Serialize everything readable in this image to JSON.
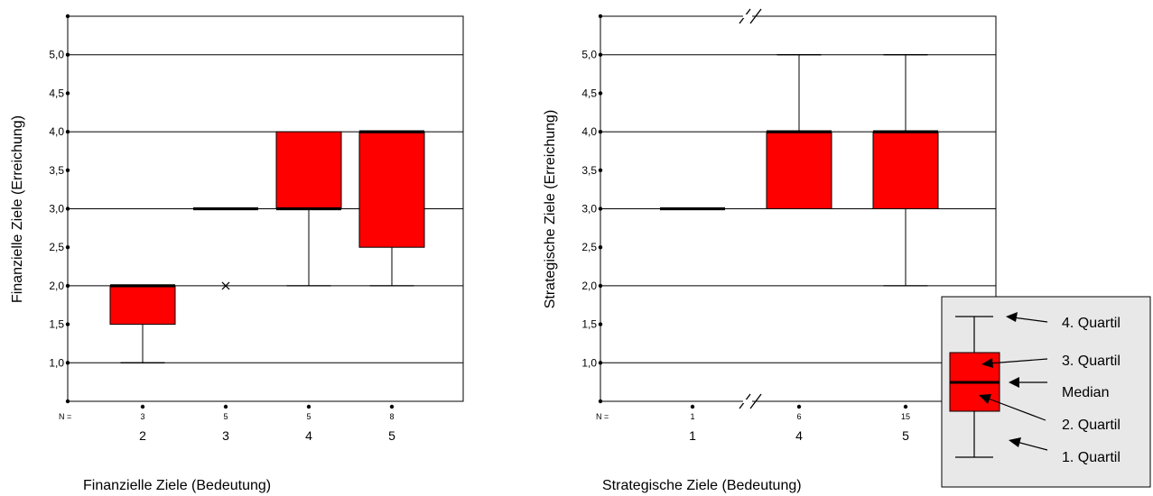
{
  "colors": {
    "box_fill": "#ff0000",
    "legend_bg": "#e8e8e8",
    "line": "#000000"
  },
  "chart_data": [
    {
      "type": "boxplot",
      "xlabel": "Finanzielle Ziele (Bedeutung)",
      "ylabel": "Finanzielle Ziele (Erreichung)",
      "ylim": [
        0.5,
        5.5
      ],
      "yticks": [
        "1,0",
        "1,5",
        "2,0",
        "2,5",
        "3,0",
        "3,5",
        "4,0",
        "4,5",
        "5,0"
      ],
      "ytick_values": [
        1.0,
        1.5,
        2.0,
        2.5,
        3.0,
        3.5,
        4.0,
        4.5,
        5.0
      ],
      "gridlines": [
        1.0,
        2.0,
        3.0,
        4.0,
        5.0
      ],
      "n_label": "N =",
      "axis_break": false,
      "categories": [
        "2",
        "3",
        "4",
        "5"
      ],
      "n": [
        "3",
        "5",
        "5",
        "8"
      ],
      "boxes": [
        {
          "min": 1.0,
          "q1": 1.5,
          "median": 2.0,
          "q3": 2.0,
          "max": 2.0
        },
        {
          "min": 3.0,
          "q1": 3.0,
          "median": 3.0,
          "q3": 3.0,
          "max": 3.0,
          "outliers": [
            2.0
          ]
        },
        {
          "min": 2.0,
          "q1": 3.0,
          "median": 3.0,
          "q3": 4.0,
          "max": 4.0
        },
        {
          "min": 2.0,
          "q1": 2.5,
          "median": 4.0,
          "q3": 4.0,
          "max": 4.0
        }
      ]
    },
    {
      "type": "boxplot",
      "xlabel": "Strategische Ziele (Bedeutung)",
      "ylabel": "Strategische Ziele (Erreichung)",
      "ylim": [
        0.5,
        5.5
      ],
      "yticks": [
        "1,0",
        "1,5",
        "2,0",
        "2,5",
        "3,0",
        "3,5",
        "4,0",
        "4,5",
        "5,0"
      ],
      "ytick_values": [
        1.0,
        1.5,
        2.0,
        2.5,
        3.0,
        3.5,
        4.0,
        4.5,
        5.0
      ],
      "gridlines": [
        1.0,
        2.0,
        3.0,
        4.0,
        5.0
      ],
      "n_label": "N =",
      "axis_break": true,
      "categories": [
        "1",
        "4",
        "5"
      ],
      "n": [
        "1",
        "6",
        "15"
      ],
      "boxes": [
        {
          "min": 3.0,
          "q1": 3.0,
          "median": 3.0,
          "q3": 3.0,
          "max": 3.0
        },
        {
          "min": 3.0,
          "q1": 3.0,
          "median": 4.0,
          "q3": 4.0,
          "max": 5.0
        },
        {
          "min": 2.0,
          "q1": 3.0,
          "median": 4.0,
          "q3": 4.0,
          "max": 5.0
        }
      ]
    }
  ],
  "legend": {
    "labels": [
      "4. Quartil",
      "3. Quartil",
      "Median",
      "2. Quartil",
      "1. Quartil"
    ]
  }
}
